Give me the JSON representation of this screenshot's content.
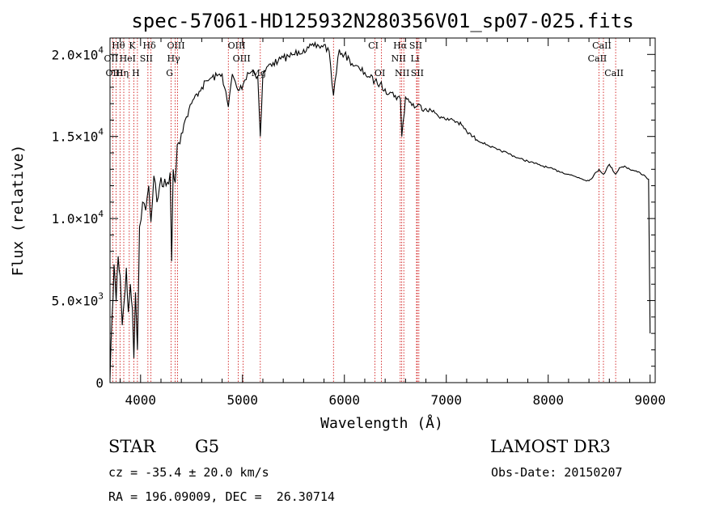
{
  "chart_data": {
    "type": "line",
    "title": "spec-57061-HD125932N280356V01_sp07-025.fits",
    "xlabel": "Wavelength (Å)",
    "ylabel": "Flux (relative)",
    "xlim": [
      3700,
      9050
    ],
    "ylim": [
      0,
      21000
    ],
    "x_ticks": [
      4000,
      5000,
      6000,
      7000,
      8000,
      9000
    ],
    "x_tick_labels": [
      "4000",
      "5000",
      "6000",
      "7000",
      "8000",
      "9000"
    ],
    "y_ticks": [
      0,
      5000,
      10000,
      15000,
      20000
    ],
    "y_tick_labels": [
      {
        "mant": "0",
        "exp": ""
      },
      {
        "mant": "5.0×10",
        "exp": "3"
      },
      {
        "mant": "1.0×10",
        "exp": "4"
      },
      {
        "mant": "1.5×10",
        "exp": "4"
      },
      {
        "mant": "2.0×10",
        "exp": "4"
      }
    ],
    "grid": false,
    "series": [
      {
        "x": [
          3700,
          3720,
          3740,
          3760,
          3780,
          3800,
          3820,
          3840,
          3860,
          3880,
          3900,
          3920,
          3934,
          3950,
          3969,
          3990,
          4020,
          4050,
          4080,
          4102,
          4130,
          4160,
          4200,
          4250,
          4290,
          4305,
          4320,
          4340,
          4360,
          4400,
          4450,
          4500,
          4550,
          4600,
          4650,
          4700,
          4750,
          4800,
          4861,
          4900,
          4957,
          5007,
          5050,
          5100,
          5150,
          5175,
          5200,
          5250,
          5300,
          5350,
          5400,
          5450,
          5500,
          5550,
          5600,
          5650,
          5700,
          5750,
          5800,
          5850,
          5893,
          5950,
          6000,
          6050,
          6100,
          6150,
          6200,
          6250,
          6300,
          6350,
          6400,
          6450,
          6500,
          6550,
          6563,
          6600,
          6650,
          6700,
          6750,
          6800,
          6850,
          6900,
          6950,
          7000,
          7050,
          7100,
          7150,
          7200,
          7300,
          7400,
          7500,
          7600,
          7700,
          7800,
          7900,
          8000,
          8100,
          8200,
          8300,
          8400,
          8498,
          8542,
          8600,
          8662,
          8700,
          8750,
          8800,
          8850,
          8900,
          8950,
          8985,
          9000
        ],
        "values": [
          200,
          4000,
          7200,
          5000,
          7700,
          6500,
          3500,
          5000,
          7000,
          4300,
          6000,
          4500,
          1500,
          5500,
          2000,
          9500,
          11000,
          10500,
          12000,
          9800,
          12600,
          11000,
          12500,
          12000,
          12800,
          7400,
          13000,
          12200,
          14500,
          15200,
          16200,
          17000,
          17600,
          18000,
          18400,
          18600,
          18700,
          18800,
          16800,
          18800,
          17800,
          18200,
          18900,
          19000,
          18700,
          15000,
          18800,
          19300,
          19500,
          19600,
          19800,
          19900,
          20000,
          20200,
          20300,
          20400,
          20500,
          20500,
          20600,
          20200,
          17500,
          20300,
          20000,
          19700,
          19300,
          19100,
          18900,
          18600,
          18400,
          18200,
          17900,
          17700,
          17500,
          17300,
          15000,
          17400,
          17100,
          16800,
          16900,
          16700,
          16600,
          16400,
          16200,
          16000,
          16100,
          15900,
          15700,
          15300,
          14800,
          14500,
          14200,
          14000,
          13700,
          13500,
          13300,
          13100,
          12900,
          12700,
          12500,
          12300,
          13000,
          12700,
          13300,
          12700,
          13100,
          13200,
          13000,
          12900,
          12800,
          12600,
          12400,
          3000
        ]
      }
    ],
    "lines": [
      {
        "w": 3727,
        "labels": [
          {
            "t": "OII",
            "r": 2
          }
        ]
      },
      {
        "w": 3760,
        "labels": [
          {
            "t": "OIII",
            "r": 3
          }
        ]
      },
      {
        "w": 3798,
        "labels": [
          {
            "t": "Hθ",
            "r": 1
          }
        ]
      },
      {
        "w": 3835,
        "labels": [
          {
            "t": "Hη",
            "r": 3
          }
        ]
      },
      {
        "w": 3889,
        "labels": [
          {
            "t": "HeI",
            "r": 2
          }
        ]
      },
      {
        "w": 3934,
        "labels": [
          {
            "t": "K",
            "r": 1
          }
        ]
      },
      {
        "w": 3969,
        "labels": [
          {
            "t": "H",
            "r": 3
          }
        ]
      },
      {
        "w": 4072,
        "labels": [
          {
            "t": "SII",
            "r": 2
          }
        ]
      },
      {
        "w": 4102,
        "labels": [
          {
            "t": "Hδ",
            "r": 1
          }
        ]
      },
      {
        "w": 4300,
        "labels": [
          {
            "t": "G",
            "r": 3
          }
        ]
      },
      {
        "w": 4340,
        "labels": [
          {
            "t": "Hγ",
            "r": 2
          }
        ]
      },
      {
        "w": 4363,
        "labels": [
          {
            "t": "OIII",
            "r": 1
          }
        ]
      },
      {
        "w": 4861,
        "labels": []
      },
      {
        "w": 4959,
        "labels": [
          {
            "t": "OIII",
            "r": 1
          }
        ]
      },
      {
        "w": 5007,
        "labels": [
          {
            "t": "OIII",
            "r": 2
          }
        ]
      },
      {
        "w": 5175,
        "labels": [
          {
            "t": "Mg",
            "r": 3
          }
        ]
      },
      {
        "w": 5893,
        "labels": []
      },
      {
        "w": 6300,
        "labels": [
          {
            "t": "CI",
            "r": 1
          }
        ]
      },
      {
        "w": 6364,
        "labels": [
          {
            "t": "OI",
            "r": 3
          }
        ]
      },
      {
        "w": 6548,
        "labels": [
          {
            "t": "NII",
            "r": 2
          }
        ]
      },
      {
        "w": 6563,
        "labels": [
          {
            "t": "Hα",
            "r": 1
          }
        ]
      },
      {
        "w": 6583,
        "labels": [
          {
            "t": "NII",
            "r": 3
          }
        ]
      },
      {
        "w": 6708,
        "labels": [
          {
            "t": "Li",
            "r": 2
          }
        ]
      },
      {
        "w": 6716,
        "labels": [
          {
            "t": "SII",
            "r": 1
          }
        ]
      },
      {
        "w": 6731,
        "labels": [
          {
            "t": "SII",
            "r": 3
          }
        ]
      },
      {
        "w": 8498,
        "labels": [
          {
            "t": "CaII",
            "r": 2
          }
        ]
      },
      {
        "w": 8542,
        "labels": [
          {
            "t": "CaII",
            "r": 1
          }
        ]
      },
      {
        "w": 8662,
        "labels": [
          {
            "t": "CaII",
            "r": 3
          }
        ]
      }
    ]
  },
  "info": {
    "class_label": "STAR",
    "subclass": "G5",
    "survey": "LAMOST DR3",
    "redshift": "cz = -35.4 ± 20.0 km/s",
    "obs_date": "Obs-Date: 20150207",
    "coords": "RA = 196.09009, DEC =  26.30714"
  },
  "colors": {
    "spectrum": "#000000",
    "line_markers": "#cc0000",
    "axes": "#000000",
    "background": "#ffffff"
  }
}
